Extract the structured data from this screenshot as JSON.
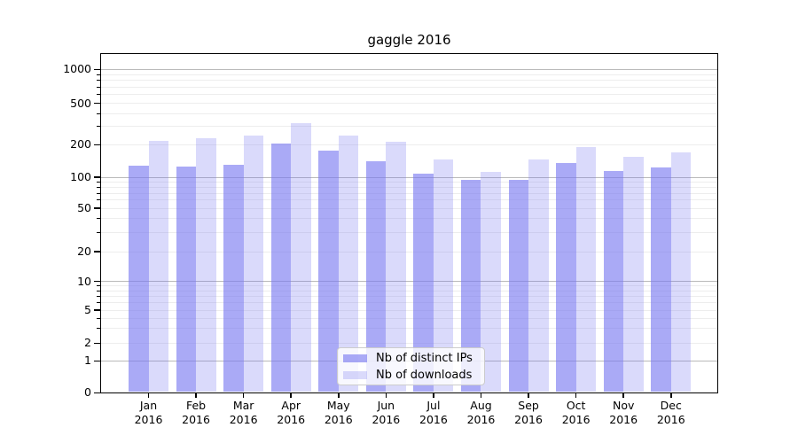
{
  "chart_data": {
    "type": "bar",
    "title": "gaggle 2016",
    "year": "2016",
    "categories": [
      "Jan",
      "Feb",
      "Mar",
      "Apr",
      "May",
      "Jun",
      "Jul",
      "Aug",
      "Sep",
      "Oct",
      "Nov",
      "Dec"
    ],
    "series": [
      {
        "name": "Nb of distinct IPs",
        "values": [
          129,
          126,
          131,
          206,
          177,
          140,
          108,
          95,
          95,
          135,
          115,
          122
        ],
        "color": "#7878f0",
        "alpha": 0.63
      },
      {
        "name": "Nb of downloads",
        "values": [
          218,
          232,
          246,
          323,
          243,
          212,
          146,
          112,
          146,
          190,
          155,
          169
        ],
        "color": "#7878f0",
        "alpha": 0.27
      }
    ],
    "yscale": "symlog",
    "y_ticks": [
      0,
      1,
      2,
      5,
      10,
      20,
      50,
      100,
      200,
      500,
      1000
    ],
    "ylim": [
      0,
      1450
    ],
    "xlabel": "",
    "ylabel": "",
    "grid": true,
    "legend_position": "lower-center",
    "colors": {
      "bar_base": "#7878f0",
      "distinct_ips_rendered": "#a8a8f8",
      "downloads_rendered": "#dbdbf9",
      "grid_major": "#c2c2c2",
      "grid_minor": "#ededed",
      "axis": "#000000"
    }
  }
}
